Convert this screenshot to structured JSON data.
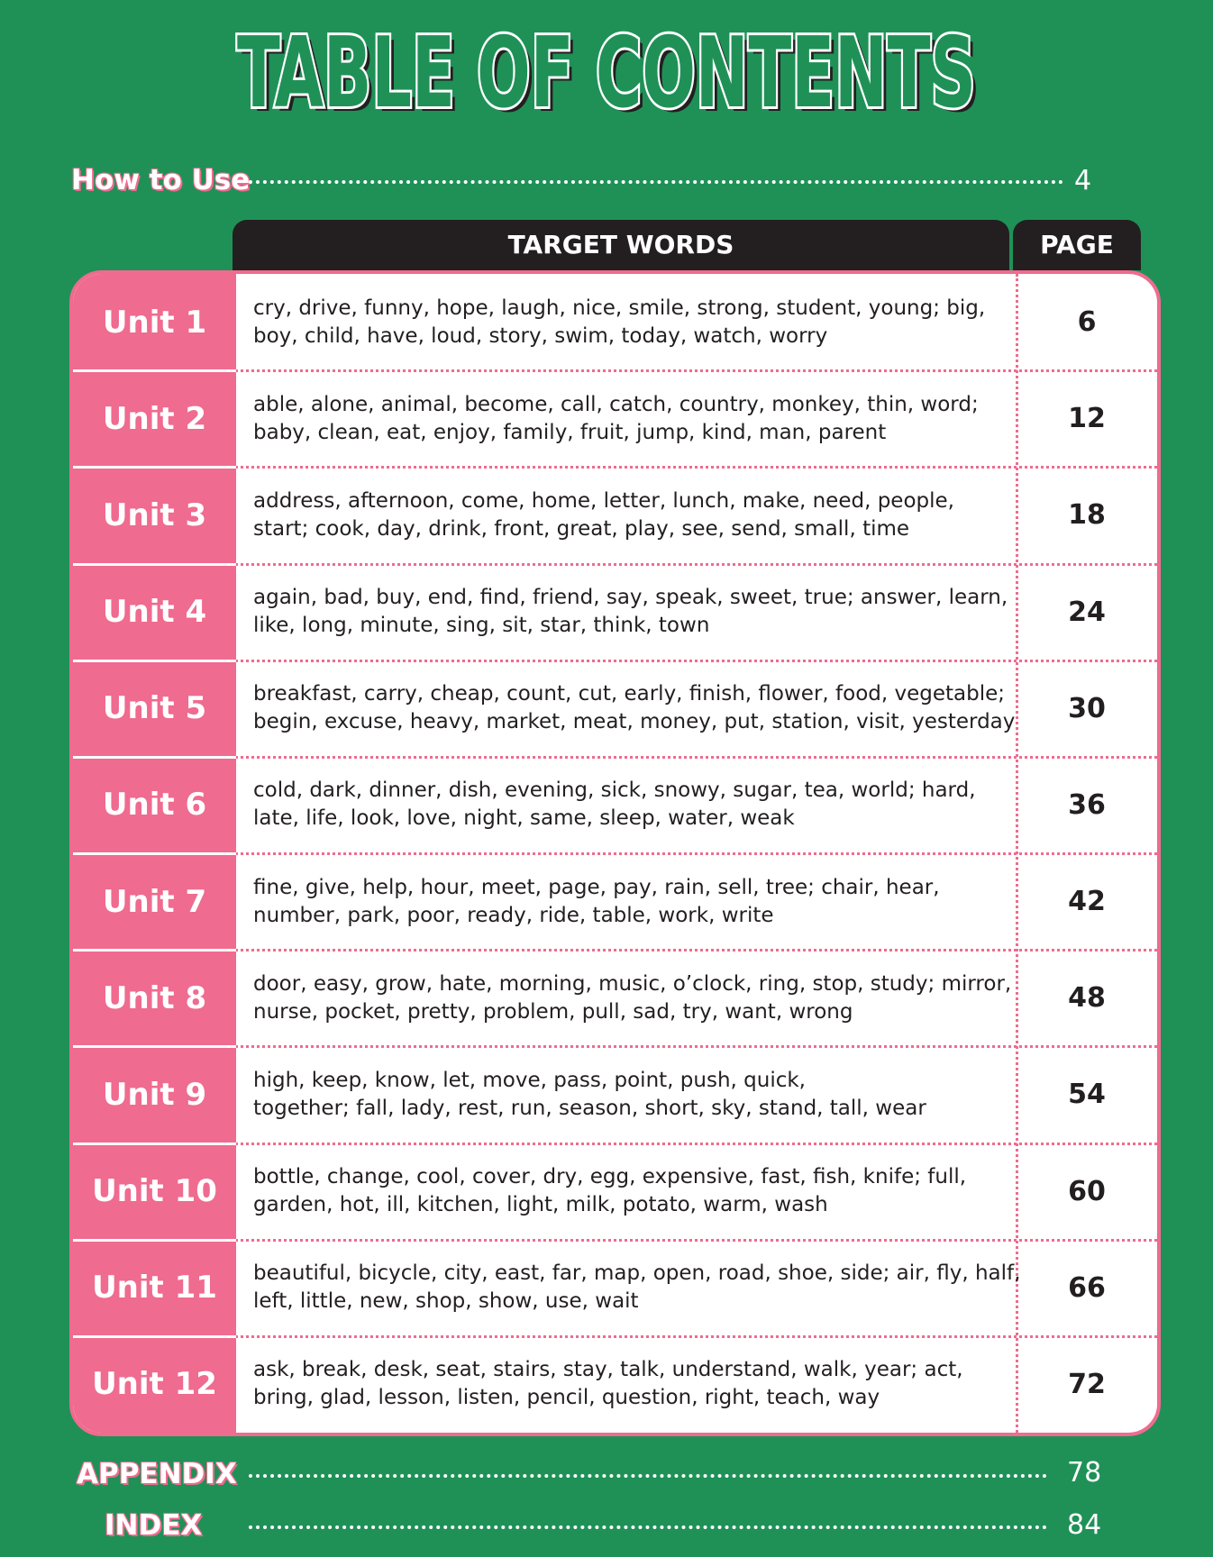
{
  "title": "TABLE OF CONTENTS",
  "how_to_use": {
    "label": "How to Use",
    "page": "4"
  },
  "table": {
    "columns": [
      "TARGET WORDS",
      "PAGE"
    ],
    "rows": [
      {
        "unit": "Unit 1",
        "words": [
          "cry, drive, funny, hope, laugh, nice, smile, strong, student, young; big,",
          "boy, child, have, loud, story, swim, today, watch, worry"
        ],
        "page": "6"
      },
      {
        "unit": "Unit 2",
        "words": [
          "able, alone, animal, become, call, catch, country, monkey, thin, word;",
          "baby, clean, eat, enjoy, family, fruit, jump, kind, man, parent"
        ],
        "page": "12"
      },
      {
        "unit": "Unit 3",
        "words": [
          "address, afternoon, come, home, letter, lunch, make, need, people,",
          "start; cook, day, drink, front, great, play, see, send, small, time"
        ],
        "page": "18"
      },
      {
        "unit": "Unit 4",
        "words": [
          "again, bad, buy, end, find, friend, say, speak, sweet, true; answer, learn,",
          "like, long, minute, sing, sit, star, think, town"
        ],
        "page": "24"
      },
      {
        "unit": "Unit 5",
        "words": [
          "breakfast, carry, cheap, count, cut, early, finish, flower, food, vegetable;",
          "begin, excuse, heavy, market, meat, money, put, station, visit, yesterday"
        ],
        "page": "30"
      },
      {
        "unit": "Unit 6",
        "words": [
          "cold, dark, dinner, dish, evening, sick, snowy, sugar, tea, world; hard,",
          "late, life, look, love, night, same, sleep, water, weak"
        ],
        "page": "36"
      },
      {
        "unit": "Unit 7",
        "words": [
          "fine, give, help, hour, meet, page, pay, rain, sell, tree; chair, hear,",
          "number, park, poor, ready, ride, table, work, write"
        ],
        "page": "42"
      },
      {
        "unit": "Unit 8",
        "words": [
          "door, easy, grow, hate, morning, music, o’clock, ring, stop, study; mirror,",
          "nurse, pocket, pretty, problem, pull, sad, try, want, wrong"
        ],
        "page": "48"
      },
      {
        "unit": "Unit 9",
        "words": [
          "high, keep, know, let, move, pass, point, push, quick,",
          "together; fall, lady, rest, run, season, short, sky, stand, tall, wear"
        ],
        "page": "54"
      },
      {
        "unit": "Unit 10",
        "words": [
          "bottle, change, cool, cover, dry, egg, expensive, fast, fish, knife; full,",
          "garden, hot, ill, kitchen, light, milk, potato, warm, wash"
        ],
        "page": "60"
      },
      {
        "unit": "Unit 11",
        "words": [
          "beautiful, bicycle, city, east, far, map, open, road, shoe, side; air, fly, half,",
          "left, little, new, shop, show, use, wait"
        ],
        "page": "66"
      },
      {
        "unit": "Unit 12",
        "words": [
          "ask, break, desk, seat, stairs, stay, talk, understand, walk, year; act,",
          "bring, glad, lesson, listen, pencil, question, right, teach, way"
        ],
        "page": "72"
      }
    ]
  },
  "appendix": {
    "label": "APPENDIX",
    "page": "78"
  },
  "index": {
    "label": "INDEX",
    "page": "84"
  }
}
